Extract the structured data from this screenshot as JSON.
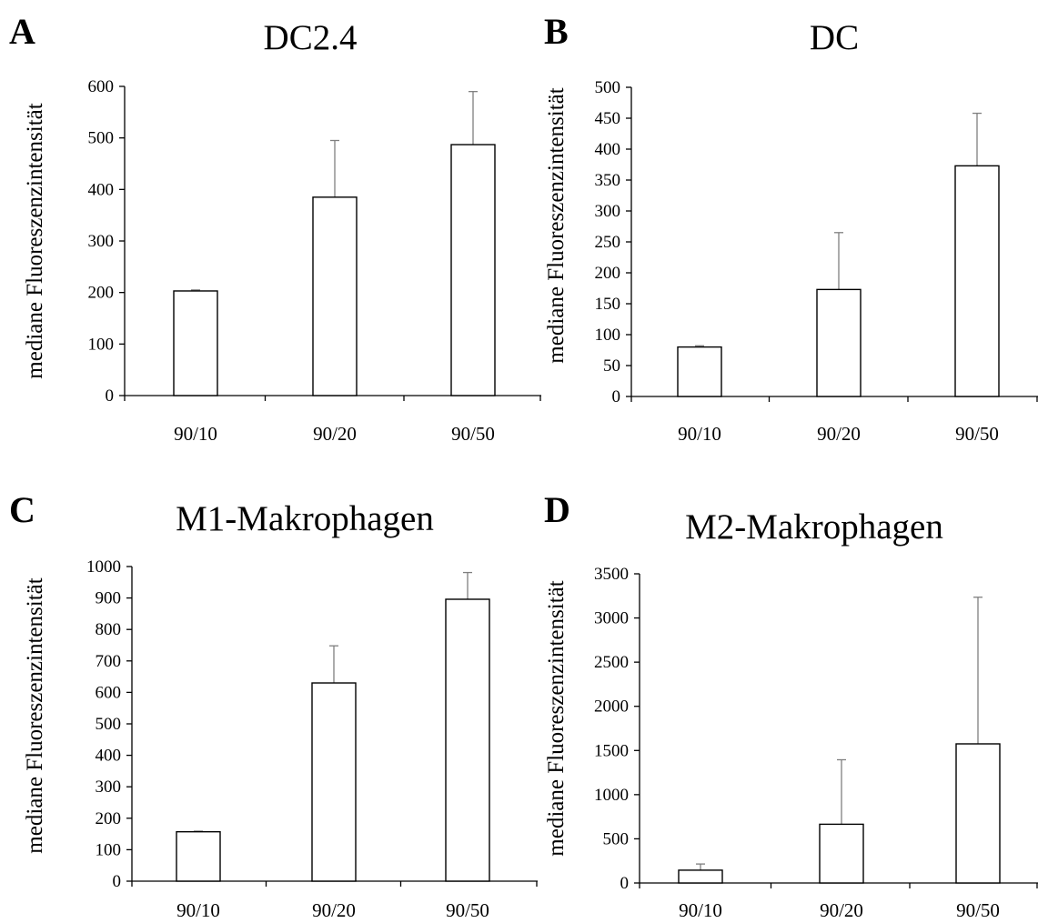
{
  "chart_data": [
    {
      "type": "bar",
      "panel": "A",
      "title": "DC2.4",
      "ylabel": "mediane Fluoreszenzintensität",
      "xlabel": "",
      "categories": [
        "90/10",
        "90/20",
        "90/50"
      ],
      "values": [
        203,
        385,
        487
      ],
      "error_upper": [
        2,
        110,
        103
      ],
      "ylim": [
        0,
        600
      ],
      "yticks": [
        0,
        100,
        200,
        300,
        400,
        500,
        600
      ],
      "grid": false,
      "bar_fill": "#ffffff",
      "bar_stroke": "#000000",
      "error_color": "#7f7f7f"
    },
    {
      "type": "bar",
      "panel": "B",
      "title": "DC",
      "ylabel": "mediane Fluoreszenzintensität",
      "xlabel": "",
      "categories": [
        "90/10",
        "90/20",
        "90/50"
      ],
      "values": [
        80,
        173,
        373
      ],
      "error_upper": [
        2,
        92,
        85
      ],
      "ylim": [
        0,
        500
      ],
      "yticks": [
        0,
        50,
        100,
        150,
        200,
        250,
        300,
        350,
        400,
        450,
        500
      ],
      "grid": false,
      "bar_fill": "#ffffff",
      "bar_stroke": "#000000",
      "error_color": "#7f7f7f"
    },
    {
      "type": "bar",
      "panel": "C",
      "title": "M1-Makrophagen",
      "ylabel": "mediane Fluoreszenzintensität",
      "xlabel": "",
      "categories": [
        "90/10",
        "90/20",
        "90/50"
      ],
      "values": [
        157,
        630,
        896
      ],
      "error_upper": [
        2,
        118,
        85
      ],
      "ylim": [
        0,
        1000
      ],
      "yticks": [
        0,
        100,
        200,
        300,
        400,
        500,
        600,
        700,
        800,
        900,
        1000
      ],
      "grid": false,
      "bar_fill": "#ffffff",
      "bar_stroke": "#000000",
      "error_color": "#7f7f7f"
    },
    {
      "type": "bar",
      "panel": "D",
      "title": "M2-Makrophagen",
      "ylabel": "mediane Fluoreszenzintensität",
      "xlabel": "",
      "categories": [
        "90/10",
        "90/20",
        "90/50"
      ],
      "values": [
        145,
        665,
        1575
      ],
      "error_upper": [
        70,
        730,
        1660
      ],
      "ylim": [
        0,
        3500
      ],
      "yticks": [
        0,
        500,
        1000,
        1500,
        2000,
        2500,
        3000,
        3500
      ],
      "grid": false,
      "bar_fill": "#ffffff",
      "bar_stroke": "#000000",
      "error_color": "#7f7f7f"
    }
  ]
}
